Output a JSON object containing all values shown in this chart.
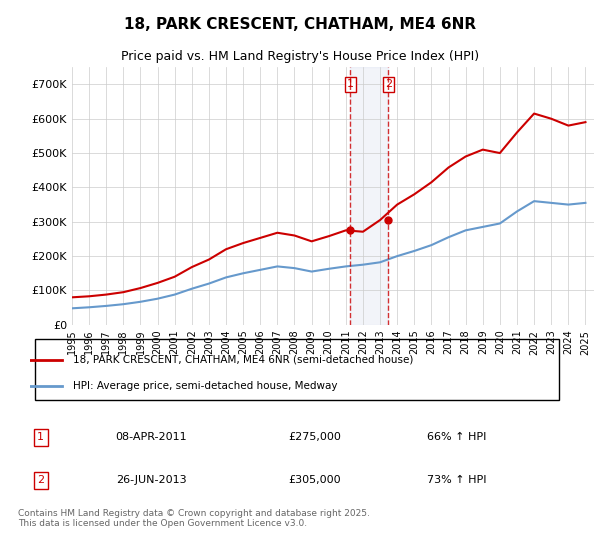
{
  "title_line1": "18, PARK CRESCENT, CHATHAM, ME4 6NR",
  "title_line2": "Price paid vs. HM Land Registry's House Price Index (HPI)",
  "ylabel": "",
  "background_color": "#ffffff",
  "plot_bg_color": "#ffffff",
  "grid_color": "#cccccc",
  "red_color": "#cc0000",
  "blue_color": "#6699cc",
  "purchase_dates": [
    "2011-04-08",
    "2013-06-26"
  ],
  "purchase_prices": [
    275000,
    305000
  ],
  "purchase_labels": [
    "1",
    "2"
  ],
  "purchase_pct": [
    "66% ↑ HPI",
    "73% ↑ HPI"
  ],
  "purchase_display_dates": [
    "08-APR-2011",
    "26-JUN-2013"
  ],
  "legend_entry1": "18, PARK CRESCENT, CHATHAM, ME4 6NR (semi-detached house)",
  "legend_entry2": "HPI: Average price, semi-detached house, Medway",
  "footer": "Contains HM Land Registry data © Crown copyright and database right 2025.\nThis data is licensed under the Open Government Licence v3.0.",
  "ylim": [
    0,
    750000
  ],
  "yticks": [
    0,
    100000,
    200000,
    300000,
    400000,
    500000,
    600000,
    700000
  ],
  "ytick_labels": [
    "£0",
    "£100K",
    "£200K",
    "£300K",
    "£400K",
    "£500K",
    "£600K",
    "£700K"
  ],
  "hpi_years": [
    1995,
    1996,
    1997,
    1998,
    1999,
    2000,
    2001,
    2002,
    2003,
    2004,
    2005,
    2006,
    2007,
    2008,
    2009,
    2010,
    2011,
    2012,
    2013,
    2014,
    2015,
    2016,
    2017,
    2018,
    2019,
    2020,
    2021,
    2022,
    2023,
    2024,
    2025
  ],
  "hpi_values": [
    48000,
    51000,
    55000,
    60000,
    67000,
    76000,
    88000,
    105000,
    120000,
    138000,
    150000,
    160000,
    170000,
    165000,
    155000,
    163000,
    170000,
    175000,
    182000,
    200000,
    215000,
    232000,
    255000,
    275000,
    285000,
    295000,
    330000,
    360000,
    355000,
    350000,
    355000
  ],
  "red_years": [
    1995,
    1996,
    1997,
    1998,
    1999,
    2000,
    2001,
    2002,
    2003,
    2004,
    2005,
    2006,
    2007,
    2008,
    2009,
    2010,
    2011,
    2012,
    2013,
    2014,
    2015,
    2016,
    2017,
    2018,
    2019,
    2020,
    2021,
    2022,
    2023,
    2024,
    2025
  ],
  "red_values": [
    80000,
    83000,
    88000,
    95000,
    107000,
    122000,
    140000,
    168000,
    190000,
    220000,
    238000,
    253000,
    268000,
    260000,
    243000,
    258000,
    275000,
    271000,
    305000,
    350000,
    380000,
    415000,
    458000,
    490000,
    510000,
    500000,
    560000,
    615000,
    600000,
    580000,
    590000
  ]
}
